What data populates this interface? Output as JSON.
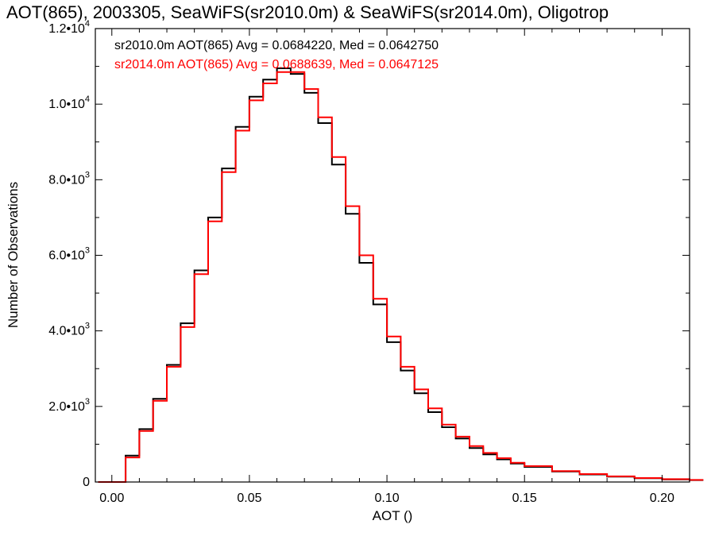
{
  "chart_data": {
    "type": "line",
    "title": "AOT(865), 2003305, SeaWiFS(sr2010.0m) & SeaWiFS(sr2014.0m), Oligotrop",
    "xlabel": "AOT ()",
    "ylabel": "Number of Observations",
    "xlim": [
      -0.006,
      0.21
    ],
    "ylim": [
      0,
      12000
    ],
    "x_ticks": [
      "0.00",
      "0.05",
      "0.10",
      "0.15",
      "0.20"
    ],
    "y_ticks": [
      {
        "mantissa": "0",
        "exp": ""
      },
      {
        "mantissa": "2.0•10",
        "exp": "3"
      },
      {
        "mantissa": "4.0•10",
        "exp": "3"
      },
      {
        "mantissa": "6.0•10",
        "exp": "3"
      },
      {
        "mantissa": "8.0•10",
        "exp": "3"
      },
      {
        "mantissa": "1.0•10",
        "exp": "4"
      },
      {
        "mantissa": "1.2•10",
        "exp": "4"
      }
    ],
    "legend_placement": "top-left",
    "grid": false,
    "step": true,
    "series": [
      {
        "name": "sr2010.0m",
        "label": "sr2010.0m AOT(865) Avg = 0.0684220, Med = 0.0642750",
        "color": "#000000",
        "x": [
          -0.005,
          0.0,
          0.005,
          0.01,
          0.015,
          0.02,
          0.025,
          0.03,
          0.035,
          0.04,
          0.045,
          0.05,
          0.055,
          0.06,
          0.065,
          0.07,
          0.075,
          0.08,
          0.085,
          0.09,
          0.095,
          0.1,
          0.105,
          0.11,
          0.115,
          0.12,
          0.125,
          0.13,
          0.135,
          0.14,
          0.145,
          0.15,
          0.16,
          0.17,
          0.18,
          0.19,
          0.2,
          0.21
        ],
        "y": [
          0,
          0,
          700,
          1400,
          2200,
          3100,
          4200,
          5600,
          7000,
          8300,
          9400,
          10200,
          10650,
          10950,
          10800,
          10300,
          9500,
          8400,
          7100,
          5800,
          4700,
          3700,
          2950,
          2350,
          1850,
          1450,
          1150,
          900,
          730,
          600,
          490,
          400,
          280,
          200,
          140,
          100,
          70,
          50
        ]
      },
      {
        "name": "sr2014.0m",
        "label": "sr2014.0m AOT(865) Avg = 0.0688639, Med = 0.0647125",
        "color": "#ff0000",
        "x": [
          -0.005,
          0.0,
          0.005,
          0.01,
          0.015,
          0.02,
          0.025,
          0.03,
          0.035,
          0.04,
          0.045,
          0.05,
          0.055,
          0.06,
          0.065,
          0.07,
          0.075,
          0.08,
          0.085,
          0.09,
          0.095,
          0.1,
          0.105,
          0.11,
          0.115,
          0.12,
          0.125,
          0.13,
          0.135,
          0.14,
          0.145,
          0.15,
          0.16,
          0.17,
          0.18,
          0.19,
          0.2,
          0.21
        ],
        "y": [
          0,
          0,
          650,
          1350,
          2150,
          3050,
          4100,
          5500,
          6900,
          8200,
          9300,
          10100,
          10550,
          10850,
          10850,
          10400,
          9650,
          8600,
          7300,
          6000,
          4850,
          3850,
          3050,
          2450,
          1950,
          1520,
          1200,
          950,
          770,
          630,
          510,
          420,
          290,
          210,
          150,
          105,
          75,
          55
        ]
      }
    ]
  }
}
